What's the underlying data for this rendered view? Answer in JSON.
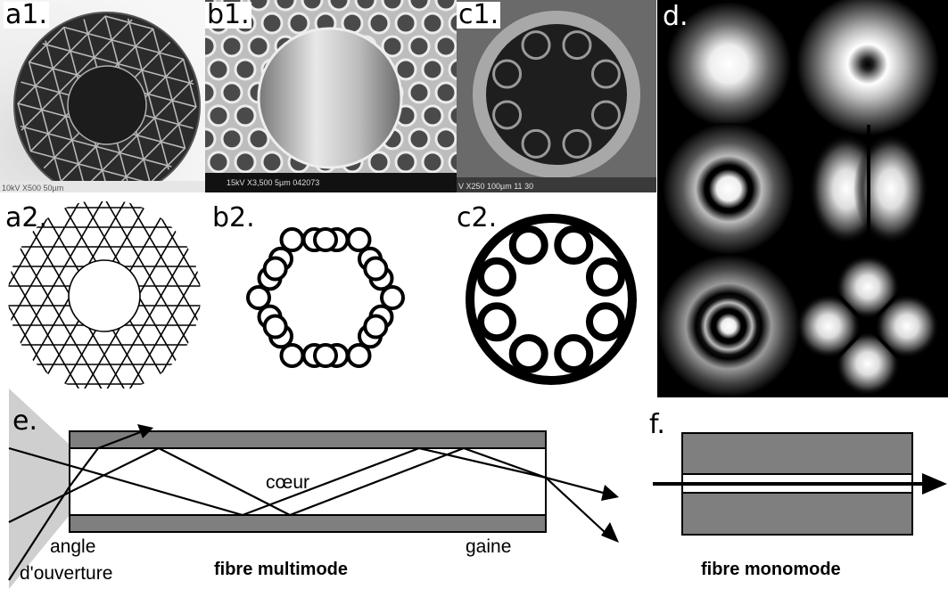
{
  "panels": {
    "a1": {
      "label": "a1.",
      "sem_bar_text": "10kV   X500  50µm"
    },
    "b1": {
      "label": "b1.",
      "sem_bar_text": "15kV   X3,500     5µm  042073"
    },
    "c1": {
      "label": "c1.",
      "sem_bar_text": "V     X250  100µm            11 30"
    },
    "d": {
      "label": "d."
    },
    "a2": {
      "label": "a2."
    },
    "b2": {
      "label": "b2."
    },
    "c2": {
      "label": "c2."
    },
    "e": {
      "label": "e.",
      "core_label": "cœur",
      "cladding_label": "gaine",
      "angle_label_line1": "angle",
      "angle_label_line2": "d'ouverture",
      "caption": "fibre multimode"
    },
    "f": {
      "label": "f.",
      "caption": "fibre monomode"
    }
  },
  "colors": {
    "cladding_gray": "#7f7f7f",
    "cone_gray": "#cfcfcf",
    "sem_dark": "#2a2a2a",
    "mode_background": "#000000"
  }
}
